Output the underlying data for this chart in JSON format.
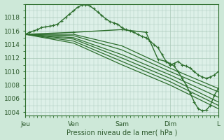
{
  "background_color": "#cde8d8",
  "plot_bg_color": "#ddf0e8",
  "grid_color": "#a8c8b8",
  "line_color": "#2d6e2d",
  "title": "Pression niveau de la mer( hPa )",
  "xlabels": [
    "Jeu",
    "Ven",
    "Sam",
    "Dim",
    "L"
  ],
  "ylim": [
    1003.5,
    1020.0
  ],
  "yticks": [
    1004,
    1006,
    1008,
    1010,
    1012,
    1014,
    1016,
    1018
  ],
  "xlim": [
    0,
    96
  ],
  "xtick_positions": [
    0,
    24,
    48,
    72,
    96
  ],
  "lines": [
    {
      "x": [
        0,
        2,
        4,
        6,
        8,
        10,
        12,
        14,
        16,
        18,
        20,
        22,
        24,
        26,
        28,
        30,
        32,
        34,
        36,
        38,
        40,
        42,
        44,
        46,
        48,
        50,
        52,
        54,
        56,
        58,
        60,
        62,
        64,
        66,
        68,
        70,
        72,
        74,
        76,
        78,
        80,
        82,
        84,
        86,
        88,
        90,
        92,
        94,
        96
      ],
      "y": [
        1015.5,
        1015.8,
        1016.0,
        1016.2,
        1016.5,
        1016.6,
        1016.7,
        1016.8,
        1017.0,
        1017.5,
        1018.0,
        1018.5,
        1019.0,
        1019.5,
        1019.8,
        1019.9,
        1019.7,
        1019.3,
        1018.8,
        1018.3,
        1017.8,
        1017.4,
        1017.2,
        1017.0,
        1016.5,
        1016.2,
        1016.0,
        1015.8,
        1015.5,
        1015.2,
        1015.0,
        1014.5,
        1014.0,
        1013.5,
        1012.5,
        1011.5,
        1011.0,
        1011.2,
        1011.5,
        1011.0,
        1010.8,
        1010.5,
        1010.0,
        1009.5,
        1009.2,
        1009.0,
        1009.2,
        1009.5,
        1010.0
      ],
      "marker": true,
      "linewidth": 1.0
    },
    {
      "x": [
        0,
        24,
        48,
        72,
        96
      ],
      "y": [
        1015.5,
        1015.5,
        1013.8,
        1010.5,
        1007.5
      ],
      "marker": false,
      "linewidth": 0.9
    },
    {
      "x": [
        0,
        24,
        48,
        72,
        96
      ],
      "y": [
        1015.5,
        1015.3,
        1013.2,
        1010.0,
        1007.0
      ],
      "marker": false,
      "linewidth": 0.9
    },
    {
      "x": [
        0,
        24,
        48,
        72,
        96
      ],
      "y": [
        1015.5,
        1015.0,
        1012.5,
        1009.5,
        1006.2
      ],
      "marker": false,
      "linewidth": 0.9
    },
    {
      "x": [
        0,
        24,
        48,
        72,
        96
      ],
      "y": [
        1015.5,
        1014.8,
        1012.0,
        1009.0,
        1005.5
      ],
      "marker": false,
      "linewidth": 0.9
    },
    {
      "x": [
        0,
        24,
        48,
        72,
        96
      ],
      "y": [
        1015.5,
        1014.5,
        1011.5,
        1008.5,
        1005.0
      ],
      "marker": false,
      "linewidth": 0.9
    },
    {
      "x": [
        0,
        24,
        48,
        72,
        96
      ],
      "y": [
        1015.5,
        1014.2,
        1011.0,
        1008.0,
        1004.5
      ],
      "marker": false,
      "linewidth": 0.9
    },
    {
      "x": [
        0,
        24,
        48,
        60,
        66,
        70,
        72,
        74,
        76,
        78,
        80,
        82,
        84,
        86,
        88,
        90,
        92,
        94,
        96
      ],
      "y": [
        1015.5,
        1015.8,
        1016.2,
        1015.8,
        1011.8,
        1011.5,
        1011.2,
        1010.8,
        1010.0,
        1009.0,
        1008.0,
        1006.8,
        1005.5,
        1004.5,
        1004.2,
        1004.3,
        1005.0,
        1006.5,
        1007.5
      ],
      "marker": true,
      "linewidth": 1.0
    }
  ]
}
